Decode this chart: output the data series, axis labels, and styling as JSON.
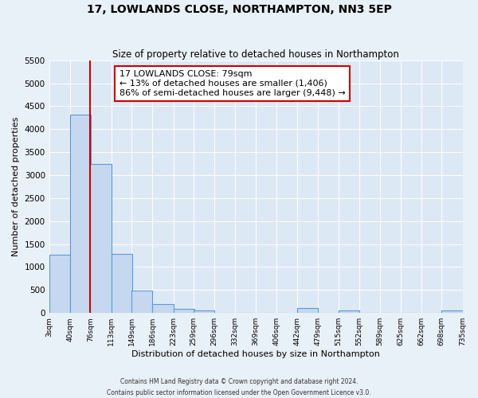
{
  "title": "17, LOWLANDS CLOSE, NORTHAMPTON, NN3 5EP",
  "subtitle": "Size of property relative to detached houses in Northampton",
  "xlabel": "Distribution of detached houses by size in Northampton",
  "ylabel": "Number of detached properties",
  "bar_left_edges": [
    3,
    40,
    76,
    113,
    149,
    186,
    223,
    259,
    296,
    332,
    369,
    406,
    442,
    479,
    515,
    552,
    589,
    625,
    662,
    698
  ],
  "bar_heights": [
    1270,
    4320,
    3250,
    1290,
    480,
    200,
    90,
    50,
    0,
    0,
    0,
    0,
    110,
    0,
    55,
    0,
    0,
    0,
    0,
    50
  ],
  "bin_width": 37,
  "bar_color": "#c5d8f0",
  "bar_edge_color": "#5b9bd5",
  "property_line_x": 76,
  "property_line_color": "#cc0000",
  "annotation_text": "17 LOWLANDS CLOSE: 79sqm\n← 13% of detached houses are smaller (1,406)\n86% of semi-detached houses are larger (9,448) →",
  "annotation_box_facecolor": "#ffffff",
  "annotation_box_edgecolor": "#cc0000",
  "x_tick_labels": [
    "3sqm",
    "40sqm",
    "76sqm",
    "113sqm",
    "149sqm",
    "186sqm",
    "223sqm",
    "259sqm",
    "296sqm",
    "332sqm",
    "369sqm",
    "406sqm",
    "442sqm",
    "479sqm",
    "515sqm",
    "552sqm",
    "589sqm",
    "625sqm",
    "662sqm",
    "698sqm",
    "735sqm"
  ],
  "x_tick_positions": [
    3,
    40,
    76,
    113,
    149,
    186,
    223,
    259,
    296,
    332,
    369,
    406,
    442,
    479,
    515,
    552,
    589,
    625,
    662,
    698,
    735
  ],
  "ylim": [
    0,
    5500
  ],
  "xlim": [
    3,
    735
  ],
  "yticks": [
    0,
    500,
    1000,
    1500,
    2000,
    2500,
    3000,
    3500,
    4000,
    4500,
    5000,
    5500
  ],
  "plot_bg_color": "#dde8f5",
  "fig_bg_color": "#e8f0f8",
  "grid_color": "#ffffff",
  "footer_line1": "Contains HM Land Registry data © Crown copyright and database right 2024.",
  "footer_line2": "Contains public sector information licensed under the Open Government Licence v3.0."
}
